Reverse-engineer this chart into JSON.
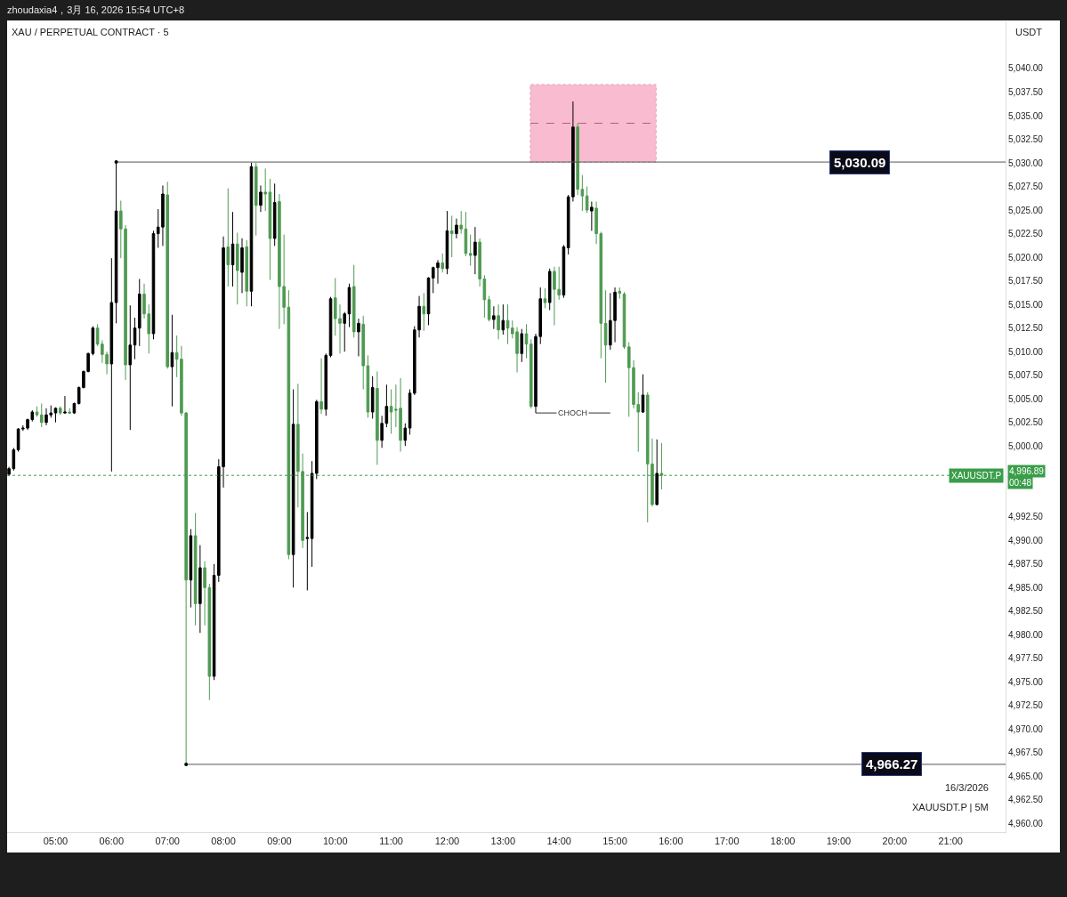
{
  "chart_data": {
    "type": "candlestick",
    "title": "XAU / PERPETUAL CONTRACT · 5",
    "subtitle": "zhoudaxia4，3月 16, 2026 15:54 UTC+8",
    "ylabel": "USDT",
    "colors": [
      "#000000",
      "#000000",
      "#000000",
      "#000000",
      "#000000",
      "#000000",
      "#4f9a52",
      "#4f9a52",
      "#000000",
      "#000000",
      "#000000",
      "#4f9a52",
      "#000000",
      "#4f9a52",
      "#000000",
      "#000000",
      "#000000",
      "#000000",
      "#000000",
      "#4f9a52",
      "#4f9a52",
      "#4f9a52",
      "#000000",
      "#000000",
      "#4f9a52",
      "#4f9a52",
      "#000000",
      "#000000",
      "#000000",
      "#4f9a52",
      "#4f9a52",
      "#000000",
      "#000000",
      "#000000",
      "#4f9a52",
      "#000000",
      "#4f9a52",
      "#4f9a52",
      "#4f9a52",
      "#000000",
      "#4f9a52",
      "#000000",
      "#4f9a52",
      "#4f9a52",
      "#000000",
      "#000000",
      "#000000",
      "#4f9a52",
      "#000000",
      "#4f9a52",
      "#000000",
      "#4f9a52",
      "#000000",
      "#4f9a52",
      "#000000",
      "#4f9a52",
      "#4f9a52",
      "#000000",
      "#4f9a52",
      "#4f9a52",
      "#4f9a52",
      "#000000",
      "#4f9a52",
      "#4f9a52",
      "#000000",
      "#000000",
      "#000000",
      "#4f9a52",
      "#000000",
      "#000000",
      "#4f9a52",
      "#4f9a52",
      "#000000",
      "#000000",
      "#4f9a52",
      "#000000",
      "#4f9a52",
      "#4f9a52",
      "#000000",
      "#4f9a52",
      "#000000",
      "#000000",
      "#4f9a52",
      "#4f9a52",
      "#4f9a52",
      "#000000",
      "#000000",
      "#000000",
      "#000000",
      "#4f9a52",
      "#000000",
      "#000000",
      "#000000",
      "#4f9a52",
      "#000000",
      "#4f9a52",
      "#000000",
      "#4f9a52",
      "#4f9a52",
      "#4f9a52",
      "#000000",
      "#4f9a52",
      "#4f9a52",
      "#4f9a52",
      "#000000",
      "#4f9a52",
      "#000000",
      "#4f9a52",
      "#4f9a52",
      "#4f9a52",
      "#000000",
      "#4f9a52",
      "#4f9a52",
      "#000000",
      "#000000",
      "#4f9a52",
      "#000000",
      "#4f9a52",
      "#4f9a52",
      "#000000",
      "#000000",
      "#000000",
      "#4f9a52",
      "#4f9a52",
      "#4f9a52",
      "#000000",
      "#4f9a52",
      "#4f9a52",
      "#4f9a52",
      "#000000",
      "#000000",
      "#4f9a52",
      "#4f9a52",
      "#4f9a52",
      "#4f9a52",
      "#4f9a52",
      "#000000",
      "#4f9a52",
      "#4f9a52",
      "#000000",
      "#4f9a52"
    ],
    "x": [
      "2026-03-16T04:10",
      "2026-03-16T04:15",
      "2026-03-16T04:20",
      "2026-03-16T04:25",
      "2026-03-16T04:30",
      "2026-03-16T04:35",
      "2026-03-16T04:40",
      "2026-03-16T04:45",
      "2026-03-16T04:50",
      "2026-03-16T04:55",
      "2026-03-16T05:00",
      "2026-03-16T05:05",
      "2026-03-16T05:10",
      "2026-03-16T05:15",
      "2026-03-16T05:20",
      "2026-03-16T05:25",
      "2026-03-16T05:30",
      "2026-03-16T05:35",
      "2026-03-16T05:40",
      "2026-03-16T05:45",
      "2026-03-16T05:50",
      "2026-03-16T05:55",
      "2026-03-16T06:00",
      "2026-03-16T06:05",
      "2026-03-16T06:10",
      "2026-03-16T06:15",
      "2026-03-16T06:20",
      "2026-03-16T06:25",
      "2026-03-16T06:30",
      "2026-03-16T06:35",
      "2026-03-16T06:40",
      "2026-03-16T06:45",
      "2026-03-16T06:50",
      "2026-03-16T06:55",
      "2026-03-16T07:00",
      "2026-03-16T07:05",
      "2026-03-16T07:10",
      "2026-03-16T07:15",
      "2026-03-16T07:20",
      "2026-03-16T07:25",
      "2026-03-16T07:30",
      "2026-03-16T07:35",
      "2026-03-16T07:40",
      "2026-03-16T07:45",
      "2026-03-16T07:50",
      "2026-03-16T07:55",
      "2026-03-16T08:00",
      "2026-03-16T08:05",
      "2026-03-16T08:10",
      "2026-03-16T08:15",
      "2026-03-16T08:20",
      "2026-03-16T08:25",
      "2026-03-16T08:30",
      "2026-03-16T08:35",
      "2026-03-16T08:40",
      "2026-03-16T08:45",
      "2026-03-16T08:50",
      "2026-03-16T08:55",
      "2026-03-16T09:00",
      "2026-03-16T09:05",
      "2026-03-16T09:10",
      "2026-03-16T09:15",
      "2026-03-16T09:20",
      "2026-03-16T09:25",
      "2026-03-16T09:30",
      "2026-03-16T09:35",
      "2026-03-16T09:40",
      "2026-03-16T09:45",
      "2026-03-16T09:50",
      "2026-03-16T09:55",
      "2026-03-16T10:00",
      "2026-03-16T10:05",
      "2026-03-16T10:10",
      "2026-03-16T10:15",
      "2026-03-16T10:20",
      "2026-03-16T10:25",
      "2026-03-16T10:30",
      "2026-03-16T10:35",
      "2026-03-16T10:40",
      "2026-03-16T10:45",
      "2026-03-16T10:50",
      "2026-03-16T10:55",
      "2026-03-16T11:00",
      "2026-03-16T11:05",
      "2026-03-16T11:10",
      "2026-03-16T11:15",
      "2026-03-16T11:20",
      "2026-03-16T11:25",
      "2026-03-16T11:30",
      "2026-03-16T11:35",
      "2026-03-16T11:40",
      "2026-03-16T11:45",
      "2026-03-16T11:50",
      "2026-03-16T11:55",
      "2026-03-16T12:00",
      "2026-03-16T12:05",
      "2026-03-16T12:10",
      "2026-03-16T12:15",
      "2026-03-16T12:20",
      "2026-03-16T12:25",
      "2026-03-16T12:30",
      "2026-03-16T12:35",
      "2026-03-16T12:40",
      "2026-03-16T12:45",
      "2026-03-16T12:50",
      "2026-03-16T12:55",
      "2026-03-16T13:00",
      "2026-03-16T13:05",
      "2026-03-16T13:10",
      "2026-03-16T13:15",
      "2026-03-16T13:20",
      "2026-03-16T13:25",
      "2026-03-16T13:30",
      "2026-03-16T13:35",
      "2026-03-16T13:40",
      "2026-03-16T13:45",
      "2026-03-16T13:50",
      "2026-03-16T13:55",
      "2026-03-16T14:00",
      "2026-03-16T14:05",
      "2026-03-16T14:10",
      "2026-03-16T14:15",
      "2026-03-16T14:20",
      "2026-03-16T14:25",
      "2026-03-16T14:30",
      "2026-03-16T14:35",
      "2026-03-16T14:40",
      "2026-03-16T14:45",
      "2026-03-16T14:50",
      "2026-03-16T14:55",
      "2026-03-16T15:00",
      "2026-03-16T15:05",
      "2026-03-16T15:10",
      "2026-03-16T15:15",
      "2026-03-16T15:20",
      "2026-03-16T15:25",
      "2026-03-16T15:30",
      "2026-03-16T15:35",
      "2026-03-16T15:40",
      "2026-03-16T15:45",
      "2026-03-16T15:50"
    ],
    "ohlc": [
      [
        4997.0,
        4997.8,
        4996.8,
        4997.6
      ],
      [
        4997.6,
        4999.8,
        4997.4,
        4999.6
      ],
      [
        4999.6,
        5001.9,
        4999.4,
        5001.8
      ],
      [
        5001.8,
        5002.2,
        5001.6,
        5001.9
      ],
      [
        5001.9,
        5002.9,
        5001.7,
        5002.8
      ],
      [
        5002.8,
        5003.8,
        5002.6,
        5003.6
      ],
      [
        5003.6,
        5004.2,
        5003.1,
        5003.3
      ],
      [
        5003.3,
        5004.5,
        5002.0,
        5002.5
      ],
      [
        5002.5,
        5004.0,
        5002.2,
        5003.3
      ],
      [
        5003.3,
        5004.3,
        5003.0,
        5003.5
      ],
      [
        5003.5,
        5004.1,
        5002.5,
        5004.0
      ],
      [
        5004.0,
        5004.2,
        5003.3,
        5003.5
      ],
      [
        5003.5,
        5005.3,
        5003.4,
        5003.6
      ],
      [
        5003.6,
        5004.0,
        5003.4,
        5003.5
      ],
      [
        5003.5,
        5004.6,
        5003.4,
        5004.5
      ],
      [
        5004.5,
        5006.3,
        5004.4,
        5006.2
      ],
      [
        5006.2,
        5008.0,
        5006.1,
        5007.9
      ],
      [
        5007.9,
        5009.9,
        5007.8,
        5009.8
      ],
      [
        5009.8,
        5012.7,
        5009.6,
        5012.5
      ],
      [
        5012.5,
        5012.9,
        5010.6,
        5010.8
      ],
      [
        5010.8,
        5011.2,
        5008.8,
        5009.7
      ],
      [
        5009.7,
        5010.0,
        5007.6,
        5008.7
      ],
      [
        5008.7,
        5019.9,
        4997.3,
        5015.2
      ],
      [
        5015.2,
        5030.09,
        5013.0,
        5024.9
      ],
      [
        5024.9,
        5026.0,
        5019.9,
        5023.0
      ],
      [
        5023.0,
        5023.4,
        5007.0,
        5008.6
      ],
      [
        5008.6,
        5014.9,
        5001.7,
        5010.7
      ],
      [
        5010.7,
        5013.6,
        5009.2,
        5012.5
      ],
      [
        5012.5,
        5017.7,
        5010.6,
        5016.1
      ],
      [
        5016.1,
        5017.2,
        5013.5,
        5014.0
      ],
      [
        5014.0,
        5015.0,
        5009.8,
        5011.9
      ],
      [
        5011.9,
        5022.8,
        5011.3,
        5022.5
      ],
      [
        5022.5,
        5025.1,
        5021.0,
        5023.2
      ],
      [
        5023.2,
        5027.6,
        5021.2,
        5026.7
      ],
      [
        5026.6,
        5028.0,
        5008.2,
        5008.4
      ],
      [
        5008.4,
        5013.9,
        5004.2,
        5009.9
      ],
      [
        5009.9,
        5011.7,
        5007.3,
        5009.2
      ],
      [
        5009.2,
        5010.6,
        5003.2,
        5003.5
      ],
      [
        5003.5,
        5003.6,
        4966.27,
        4985.8
      ],
      [
        4985.8,
        4991.2,
        4982.9,
        4990.5
      ],
      [
        4990.5,
        4992.9,
        4981.0,
        4983.3
      ],
      [
        4983.3,
        4989.5,
        4980.2,
        4987.1
      ],
      [
        4987.1,
        4987.8,
        4981.0,
        4985.0
      ],
      [
        4985.0,
        4985.4,
        4973.1,
        4975.6
      ],
      [
        4975.6,
        4987.5,
        4975.2,
        4986.3
      ],
      [
        4986.3,
        4998.6,
        4985.6,
        4997.8
      ],
      [
        4997.8,
        5022.2,
        4995.6,
        5021.0
      ],
      [
        5021.1,
        5027.3,
        5016.9,
        5019.2
      ],
      [
        5019.2,
        5024.8,
        5016.9,
        5021.4
      ],
      [
        5021.4,
        5022.6,
        5015.0,
        5018.6
      ],
      [
        5018.4,
        5022.0,
        5016.2,
        5021.0
      ],
      [
        5021.1,
        5021.8,
        5014.8,
        5016.4
      ],
      [
        5016.4,
        5030.0,
        5014.8,
        5029.6
      ],
      [
        5029.6,
        5030.0,
        5022.3,
        5025.5
      ],
      [
        5025.5,
        5027.6,
        5024.8,
        5026.9
      ],
      [
        5026.9,
        5029.4,
        5024.9,
        5026.7
      ],
      [
        5026.9,
        5028.3,
        5017.6,
        5022.0
      ],
      [
        5022.0,
        5027.8,
        5021.2,
        5025.8
      ],
      [
        5025.9,
        5026.7,
        5012.4,
        5016.9
      ],
      [
        5016.9,
        5022.4,
        5012.9,
        5014.7
      ],
      [
        5014.7,
        5016.5,
        4988.0,
        4988.5
      ],
      [
        4988.5,
        5006.0,
        4985.0,
        5002.3
      ],
      [
        5002.3,
        5006.6,
        4993.5,
        4997.3
      ],
      [
        4997.3,
        4999.2,
        4989.2,
        4990.0
      ],
      [
        4990.2,
        4993.0,
        4984.7,
        4990.3
      ],
      [
        4990.2,
        4998.4,
        4987.2,
        4997.1
      ],
      [
        4997.1,
        5004.9,
        4996.5,
        5004.7
      ],
      [
        5004.7,
        5009.3,
        5003.4,
        5003.9
      ],
      [
        5003.9,
        5009.8,
        5003.2,
        5009.6
      ],
      [
        5009.6,
        5015.8,
        5009.4,
        5015.6
      ],
      [
        5015.7,
        5017.8,
        5011.7,
        5013.5
      ],
      [
        5013.5,
        5015.0,
        5009.8,
        5013.0
      ],
      [
        5013.0,
        5014.2,
        5010.0,
        5014.0
      ],
      [
        5014.0,
        5017.2,
        5012.6,
        5016.8
      ],
      [
        5016.9,
        5019.2,
        5011.5,
        5012.1
      ],
      [
        5012.1,
        5013.5,
        5009.5,
        5013.0
      ],
      [
        5012.9,
        5013.8,
        5006.0,
        5008.5
      ],
      [
        5008.5,
        5009.6,
        5003.0,
        5003.6
      ],
      [
        5003.6,
        5007.4,
        5002.9,
        5006.2
      ],
      [
        5006.1,
        5007.9,
        4998.0,
        5000.6
      ],
      [
        5000.6,
        5003.2,
        4999.8,
        5002.4
      ],
      [
        5002.4,
        5006.5,
        5002.0,
        5004.2
      ],
      [
        5004.2,
        5006.0,
        5001.3,
        5003.6
      ],
      [
        5003.9,
        5006.5,
        5002.0,
        5003.8
      ],
      [
        5004.0,
        5007.2,
        4999.4,
        5000.6
      ],
      [
        5000.6,
        5002.4,
        5000.0,
        5001.9
      ],
      [
        5001.9,
        5006.0,
        5001.2,
        5005.6
      ],
      [
        5005.6,
        5012.7,
        5005.4,
        5012.3
      ],
      [
        5012.3,
        5015.9,
        5011.5,
        5014.8
      ],
      [
        5014.8,
        5016.2,
        5012.2,
        5014.0
      ],
      [
        5014.0,
        5017.9,
        5012.8,
        5017.8
      ],
      [
        5017.8,
        5019.0,
        5016.2,
        5018.9
      ],
      [
        5018.9,
        5019.7,
        5017.2,
        5019.4
      ],
      [
        5019.4,
        5020.4,
        5018.4,
        5018.8
      ],
      [
        5018.8,
        5024.9,
        5018.2,
        5022.8
      ],
      [
        5022.8,
        5024.4,
        5020.0,
        5022.5
      ],
      [
        5022.5,
        5024.1,
        5022.0,
        5023.4
      ],
      [
        5023.4,
        5024.9,
        5022.5,
        5023.0
      ],
      [
        5023.0,
        5024.8,
        5020.1,
        5020.4
      ],
      [
        5020.4,
        5022.4,
        5019.1,
        5020.2
      ],
      [
        5020.2,
        5023.2,
        5018.2,
        5021.6
      ],
      [
        5021.6,
        5022.0,
        5016.9,
        5017.7
      ],
      [
        5017.7,
        5018.1,
        5013.6,
        5015.5
      ],
      [
        5015.5,
        5015.9,
        5013.2,
        5013.4
      ],
      [
        5013.4,
        5014.8,
        5012.4,
        5013.8
      ],
      [
        5013.8,
        5015.0,
        5011.3,
        5012.3
      ],
      [
        5012.3,
        5015.0,
        5011.8,
        5013.3
      ],
      [
        5013.3,
        5015.0,
        5010.8,
        5012.5
      ],
      [
        5012.5,
        5013.3,
        5011.4,
        5011.9
      ],
      [
        5012.1,
        5012.6,
        5007.8,
        5009.8
      ],
      [
        5009.8,
        5012.4,
        5008.9,
        5011.9
      ],
      [
        5011.9,
        5012.9,
        5009.3,
        5010.8
      ],
      [
        5010.8,
        5011.3,
        5004.0,
        5004.2
      ],
      [
        5004.2,
        5011.9,
        5003.5,
        5011.6
      ],
      [
        5011.6,
        5016.8,
        5010.8,
        5015.6
      ],
      [
        5015.6,
        5016.7,
        5014.6,
        5015.2
      ],
      [
        5015.2,
        5018.8,
        5014.4,
        5018.5
      ],
      [
        5018.5,
        5019.0,
        5012.8,
        5016.6
      ],
      [
        5016.6,
        5019.0,
        5015.5,
        5016.0
      ],
      [
        5016.0,
        5021.3,
        5015.7,
        5021.1
      ],
      [
        5021.0,
        5026.6,
        5020.3,
        5026.4
      ],
      [
        5026.4,
        5036.5,
        5025.9,
        5033.8
      ],
      [
        5033.8,
        5034.2,
        5026.6,
        5027.2
      ],
      [
        5027.2,
        5028.7,
        5024.9,
        5026.5
      ],
      [
        5026.5,
        5027.5,
        5024.7,
        5025.0
      ],
      [
        5024.9,
        5025.9,
        5022.8,
        5025.3
      ],
      [
        5025.2,
        5025.9,
        5021.4,
        5022.5
      ],
      [
        5022.5,
        5022.7,
        5009.3,
        5013.0
      ],
      [
        5013.0,
        5016.5,
        5006.7,
        5010.7
      ],
      [
        5010.7,
        5016.2,
        5010.2,
        5013.3
      ],
      [
        5013.3,
        5016.8,
        5011.0,
        5016.3
      ],
      [
        5016.4,
        5016.8,
        5015.6,
        5016.2
      ],
      [
        5016.1,
        5016.3,
        5010.3,
        5010.5
      ],
      [
        5010.5,
        5011.0,
        5003.1,
        5008.3
      ],
      [
        5008.3,
        5009.1,
        5004.0,
        5004.4
      ],
      [
        5004.4,
        5005.7,
        4999.4,
        5003.6
      ],
      [
        5003.6,
        5007.6,
        5003.5,
        5005.4
      ],
      [
        5005.4,
        5005.7,
        4991.9,
        4998.1
      ],
      [
        4998.1,
        5000.8,
        4993.6,
        4993.8
      ],
      [
        4993.8,
        5000.7,
        4993.7,
        4997.1
      ],
      [
        4997.1,
        5000.3,
        4995.4,
        4996.89
      ]
    ],
    "xlim": [
      "2026-03-16T04:08",
      "2026-03-16T21:59"
    ],
    "xticks": [
      {
        "value": "2026-03-16T05:00",
        "label": "05:00"
      },
      {
        "value": "2026-03-16T06:00",
        "label": "06:00"
      },
      {
        "value": "2026-03-16T07:00",
        "label": "07:00"
      },
      {
        "value": "2026-03-16T08:00",
        "label": "08:00"
      },
      {
        "value": "2026-03-16T09:00",
        "label": "09:00"
      },
      {
        "value": "2026-03-16T10:00",
        "label": "10:00"
      },
      {
        "value": "2026-03-16T11:00",
        "label": "11:00"
      },
      {
        "value": "2026-03-16T12:00",
        "label": "12:00"
      },
      {
        "value": "2026-03-16T13:00",
        "label": "13:00"
      },
      {
        "value": "2026-03-16T14:00",
        "label": "14:00"
      },
      {
        "value": "2026-03-16T15:00",
        "label": "15:00"
      },
      {
        "value": "2026-03-16T16:00",
        "label": "16:00"
      },
      {
        "value": "2026-03-16T17:00",
        "label": "17:00"
      },
      {
        "value": "2026-03-16T18:00",
        "label": "18:00"
      },
      {
        "value": "2026-03-16T19:00",
        "label": "19:00"
      },
      {
        "value": "2026-03-16T20:00",
        "label": "20:00"
      },
      {
        "value": "2026-03-16T21:00",
        "label": "21:00"
      }
    ],
    "ylim": [
      4959.1,
      5044.9
    ],
    "yticks": [
      {
        "value": 4960,
        "label": "4,960.00"
      },
      {
        "value": 4962.5,
        "label": "4,962.50"
      },
      {
        "value": 4965,
        "label": "4,965.00"
      },
      {
        "value": 4967.5,
        "label": "4,967.50"
      },
      {
        "value": 4970,
        "label": "4,970.00"
      },
      {
        "value": 4972.5,
        "label": "4,972.50"
      },
      {
        "value": 4975,
        "label": "4,975.00"
      },
      {
        "value": 4977.5,
        "label": "4,977.50"
      },
      {
        "value": 4980,
        "label": "4,980.00"
      },
      {
        "value": 4982.5,
        "label": "4,982.50"
      },
      {
        "value": 4985,
        "label": "4,985.00"
      },
      {
        "value": 4987.5,
        "label": "4,987.50"
      },
      {
        "value": 4990,
        "label": "4,990.00"
      },
      {
        "value": 4992.5,
        "label": "4,992.50"
      },
      {
        "value": 5000,
        "label": "5,000.00"
      },
      {
        "value": 5002.5,
        "label": "5,002.50"
      },
      {
        "value": 5005,
        "label": "5,005.00"
      },
      {
        "value": 5007.5,
        "label": "5,007.50"
      },
      {
        "value": 5010,
        "label": "5,010.00"
      },
      {
        "value": 5012.5,
        "label": "5,012.50"
      },
      {
        "value": 5015,
        "label": "5,015.00"
      },
      {
        "value": 5017.5,
        "label": "5,017.50"
      },
      {
        "value": 5020,
        "label": "5,020.00"
      },
      {
        "value": 5022.5,
        "label": "5,022.50"
      },
      {
        "value": 5025,
        "label": "5,025.00"
      },
      {
        "value": 5027.5,
        "label": "5,027.50"
      },
      {
        "value": 5030,
        "label": "5,030.00"
      },
      {
        "value": 5032.5,
        "label": "5,032.50"
      },
      {
        "value": 5035,
        "label": "5,035.00"
      },
      {
        "value": 5037.5,
        "label": "5,037.50"
      },
      {
        "value": 5040,
        "label": "5,040.00"
      }
    ],
    "ref_lines": [
      {
        "axis": "y",
        "value": 5030.09,
        "label": "5,030.09",
        "color": "#555555",
        "line_style": "solid"
      },
      {
        "axis": "y",
        "value": 4966.27,
        "label": "4,966.27",
        "color": "#555555",
        "line_style": "solid"
      },
      {
        "axis": "y",
        "value": 4996.89,
        "label": "XAUUSDT.P",
        "color": "#3a9d49",
        "line_style": "dotted"
      },
      {
        "axis": "y",
        "value": 5003.5,
        "label": "CHOCH",
        "color": "#333333",
        "line_style": "solid"
      },
      {
        "axis": "y",
        "value": 5034.2,
        "color": "#b06080",
        "line_style": "dashed"
      }
    ],
    "bands": [
      {
        "axis": "y",
        "from": 5030.09,
        "to": 5038.3,
        "color": "#f8bbd0"
      }
    ],
    "annotations": [
      "16/3/2026",
      "XAUUSDT.P | 5M",
      "4,996.89",
      "00:48"
    ]
  }
}
